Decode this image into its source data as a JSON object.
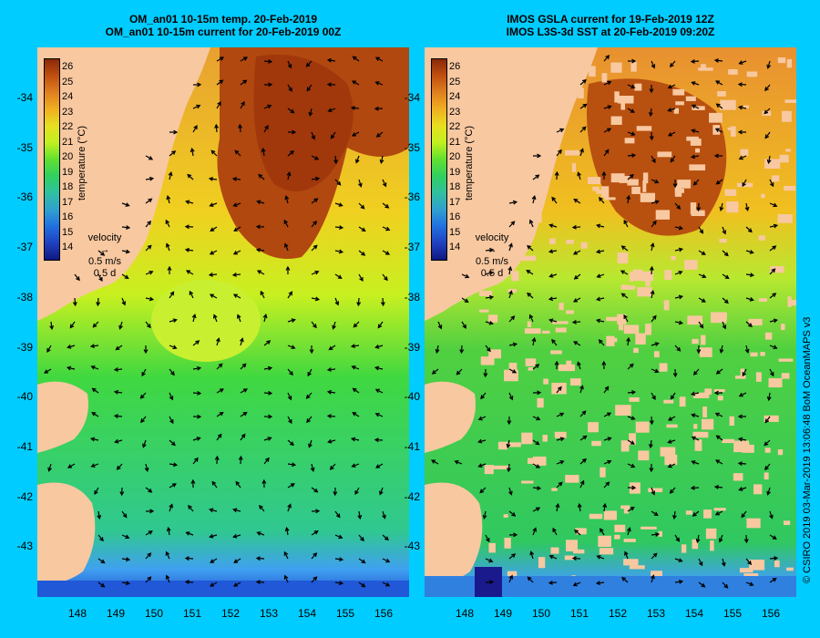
{
  "panels": [
    {
      "title_line1": "OM_an01 10-15m temp. 20-Feb-2019",
      "title_line2": "OM_an01 10-15m current for 20-Feb-2019 00Z"
    },
    {
      "title_line1": "IMOS GSLA current for 19-Feb-2019 12Z",
      "title_line2": "IMOS L3S-3d SST at 20-Feb-2019 09:20Z"
    }
  ],
  "colorbar": {
    "label": "temperature (°C)",
    "ticks": [
      "26",
      "25",
      "24",
      "23",
      "22",
      "21",
      "20",
      "19",
      "18",
      "17",
      "16",
      "15",
      "14"
    ]
  },
  "velocity_legend": {
    "title": "velocity",
    "speed": "0.5 m/s",
    "time": "0.5 d"
  },
  "axes": {
    "lat_labels": [
      "-34",
      "-35",
      "-36",
      "-37",
      "-38",
      "-39",
      "-40",
      "-41",
      "-42",
      "-43"
    ],
    "lon_labels": [
      "148",
      "149",
      "150",
      "151",
      "152",
      "153",
      "154",
      "155",
      "156"
    ]
  },
  "credit": "© CSIRO 2019   03-Mar-2019 13:06:48 BoM OceanMAPS v3",
  "colors": {
    "background": "#00ccff",
    "land": "#f8c8a0",
    "warm": "#a0380c",
    "cold": "#1a1a8c"
  }
}
